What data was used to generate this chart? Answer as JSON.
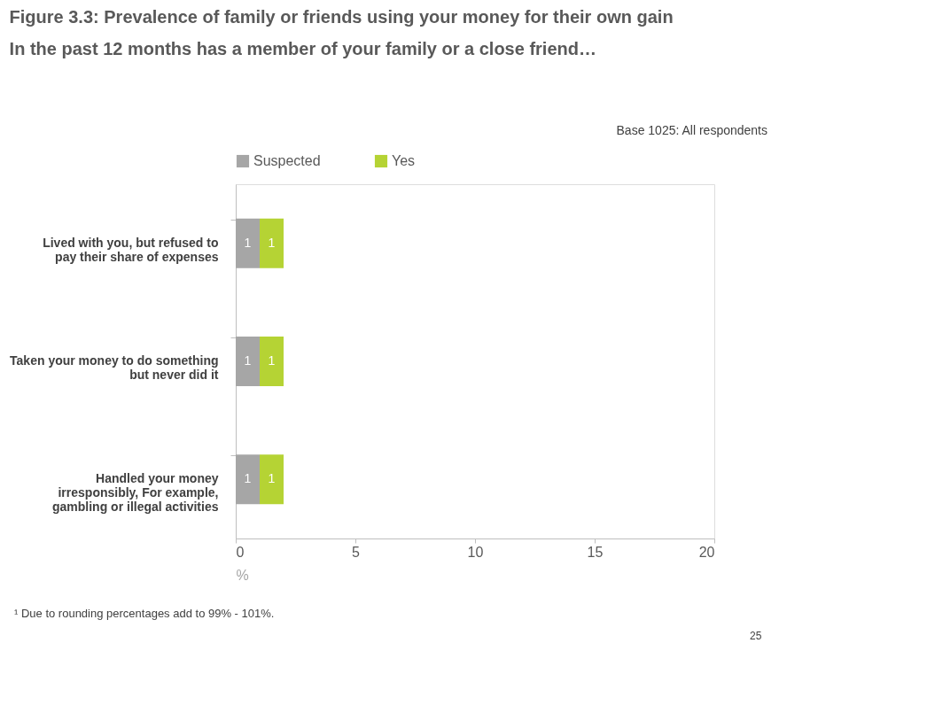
{
  "chart_data": {
    "type": "bar",
    "orientation": "horizontal",
    "stacked": true,
    "title": "Figure 3.3: Prevalence of family or friends using your money for their own gain",
    "subtitle": "In the past 12 months has a member of your family or a close friend…",
    "categories": [
      "Lived with you, but refused to pay their share of expenses",
      "Taken your money to do something but never did it",
      "Handled your money irresponsibly, For example, gambling or illegal activities"
    ],
    "series": [
      {
        "name": "Suspected",
        "color": "#a6a6a6",
        "values": [
          1,
          1,
          1
        ]
      },
      {
        "name": "Yes",
        "color": "#b5d334",
        "values": [
          1,
          1,
          1
        ]
      }
    ],
    "xlim": [
      0,
      20
    ],
    "xticks": [
      0,
      5,
      10,
      15,
      20
    ],
    "xlabel": "%",
    "data_labels": true,
    "legend": "top",
    "grid": false,
    "annotations": [
      "Base 1025: All respondents",
      "¹ Due to rounding percentages add to 99% - 101%.",
      "25"
    ]
  }
}
